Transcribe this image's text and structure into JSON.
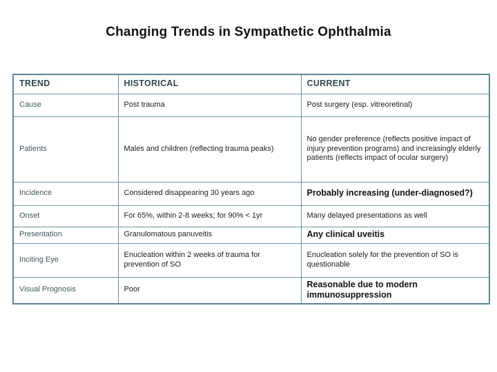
{
  "slide": {
    "title": "Changing Trends in Sympathetic Ophthalmia"
  },
  "colors": {
    "background": "#ffffff",
    "table_border": "#6e94a4",
    "header_text": "#33464e",
    "trend_label_text": "#44545c",
    "body_text": "#1d1d1d",
    "title_text": "#121212"
  },
  "table": {
    "headers": [
      "TREND",
      "HISTORICAL",
      "CURRENT"
    ],
    "rows": [
      {
        "trend": "Cause",
        "historical": "Post trauma",
        "current": "Post surgery (esp. vitreoretinal)",
        "current_bold": false
      },
      {
        "trend": "Patients",
        "historical": "Males and children (reflecting trauma peaks)",
        "current": "No gender preference (reflects positive impact of injury prevention programs) and increasingly elderly patients (reflects impact of ocular surgery)",
        "current_bold": false
      },
      {
        "trend": "Incidence",
        "historical": "Considered disappearing 30 years ago",
        "current": "Probably increasing (under-diagnosed?)",
        "current_bold": true
      },
      {
        "trend": "Onset",
        "historical": "For 65%, within 2-8 weeks; for 90% < 1yr",
        "current": "Many delayed presentations as well",
        "current_bold": false
      },
      {
        "trend": "Presentation",
        "historical": "Granulomatous panuveitis",
        "current": "Any clinical uveitis",
        "current_bold": true
      },
      {
        "trend": "Inciting Eye",
        "historical": "Enucleation within 2 weeks of trauma for prevention of SO",
        "current": "Enucleation solely for the prevention of SO is questionable",
        "current_bold": false
      },
      {
        "trend": "Visual Prognosis",
        "historical": "Poor",
        "current": "Reasonable due to modern immunosuppression",
        "current_bold": true
      }
    ]
  }
}
